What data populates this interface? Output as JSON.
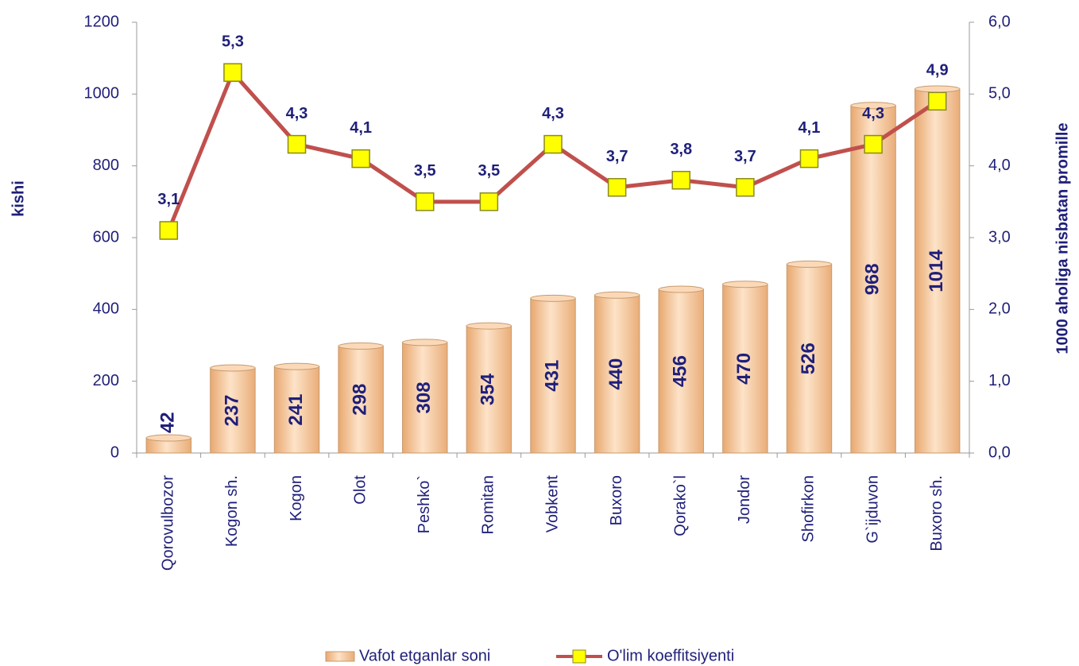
{
  "chart_data": {
    "type": "bar-line",
    "y_label": "kishi",
    "y2_label": "1000 aholiga nisbatan promille",
    "categories": [
      "Qorovulbozor",
      "Kogon sh.",
      "Kogon",
      "Olot",
      "Peshko`",
      "Romitan",
      "Vobkent",
      "Buxoro",
      "Qorako`l",
      "Jondor",
      "Shofirkon",
      "G`ijduvon",
      "Buxoro sh."
    ],
    "series": [
      {
        "name": "Vafot etganlar soni",
        "type": "bar",
        "color": "#f7c79a",
        "values": [
          42,
          237,
          241,
          298,
          308,
          354,
          431,
          440,
          456,
          470,
          526,
          968,
          1014
        ]
      },
      {
        "name": "O'lim koeffitsiyenti",
        "type": "line",
        "axis": "y2",
        "color": "#c0504d",
        "marker_color": "#ffff00",
        "values": [
          3.1,
          5.3,
          4.3,
          4.1,
          3.5,
          3.5,
          4.3,
          3.7,
          3.8,
          3.7,
          4.1,
          4.3,
          4.9
        ],
        "value_labels": [
          "3,1",
          "5,3",
          "4,3",
          "4,1",
          "3,5",
          "3,5",
          "4,3",
          "3,7",
          "3,8",
          "3,7",
          "4,1",
          "4,3",
          "4,9"
        ]
      }
    ],
    "ylim": [
      0,
      1200
    ],
    "yticks": [
      0,
      200,
      400,
      600,
      800,
      1000,
      1200
    ],
    "y2lim": [
      0,
      6
    ],
    "y2ticks": [
      {
        "value": 0,
        "label": "0,0"
      },
      {
        "value": 1,
        "label": "1,0"
      },
      {
        "value": 2,
        "label": "2,0"
      },
      {
        "value": 3,
        "label": "3,0"
      },
      {
        "value": 4,
        "label": "4,0"
      },
      {
        "value": 5,
        "label": "5,0"
      },
      {
        "value": 6,
        "label": "6,0"
      }
    ],
    "grid": false,
    "legend": "bottom"
  }
}
